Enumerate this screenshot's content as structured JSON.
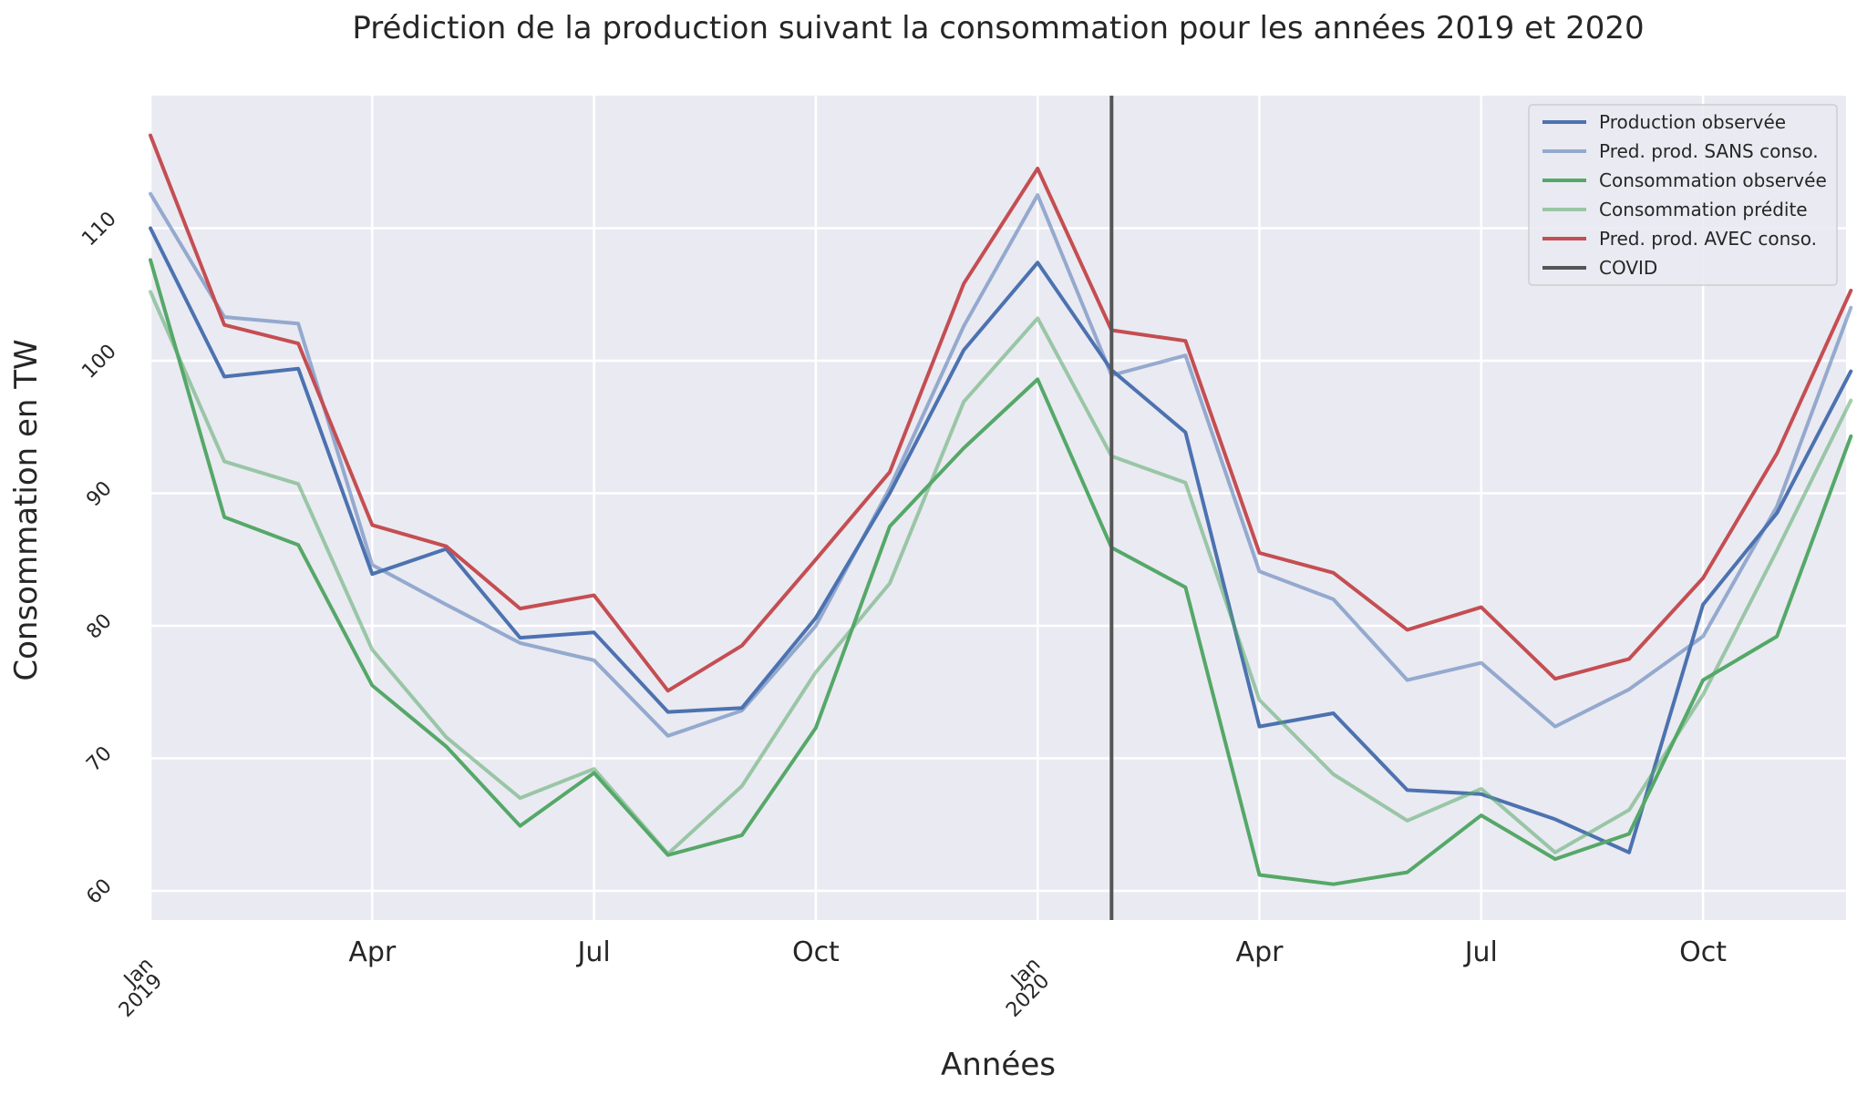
{
  "chart_data": {
    "type": "line",
    "title": "Prédiction de la production suivant la consommation pour les années 2019 et 2020",
    "xlabel": "Années",
    "ylabel": "Consommation en TW",
    "ylim": [
      57.8,
      120.0
    ],
    "yticks": [
      60,
      70,
      80,
      90,
      100,
      110
    ],
    "x": [
      "2019-01",
      "2019-02",
      "2019-03",
      "2019-04",
      "2019-05",
      "2019-06",
      "2019-07",
      "2019-08",
      "2019-09",
      "2019-10",
      "2019-11",
      "2019-12",
      "2020-01",
      "2020-02",
      "2020-03",
      "2020-04",
      "2020-05",
      "2020-06",
      "2020-07",
      "2020-08",
      "2020-09",
      "2020-10",
      "2020-11",
      "2020-12"
    ],
    "xticks": [
      {
        "date": "2019-01",
        "label": "Jan",
        "sublabel": "2019",
        "style": "small"
      },
      {
        "date": "2019-04",
        "label": "Apr",
        "style": "major"
      },
      {
        "date": "2019-07",
        "label": "Jul",
        "style": "major"
      },
      {
        "date": "2019-10",
        "label": "Oct",
        "style": "major"
      },
      {
        "date": "2020-01",
        "label": "Jan",
        "sublabel": "2020",
        "style": "small"
      },
      {
        "date": "2020-04",
        "label": "Apr",
        "style": "major"
      },
      {
        "date": "2020-07",
        "label": "Jul",
        "style": "major"
      },
      {
        "date": "2020-10",
        "label": "Oct",
        "style": "major"
      }
    ],
    "grid": true,
    "legend_position": "top-right",
    "series": [
      {
        "name": "Production observée",
        "color": "#4c72b0",
        "opacity": 1.0,
        "values": [
          110.0,
          98.8,
          99.4,
          83.9,
          85.8,
          79.1,
          79.5,
          73.5,
          73.8,
          80.6,
          90.0,
          100.8,
          107.4,
          99.3,
          94.6,
          72.4,
          73.4,
          67.6,
          67.3,
          65.4,
          62.9,
          81.6,
          88.5,
          99.2
        ]
      },
      {
        "name": "Pred. prod. SANS conso.",
        "color": "#4c72b0",
        "opacity": 0.55,
        "values": [
          112.6,
          103.3,
          102.8,
          84.6,
          81.6,
          78.7,
          77.4,
          71.7,
          73.6,
          80.0,
          90.4,
          102.6,
          112.5,
          98.9,
          100.4,
          84.1,
          82.0,
          75.9,
          77.2,
          72.4,
          75.2,
          79.2,
          89.0,
          104.0
        ]
      },
      {
        "name": "Consommation observée",
        "color": "#55a868",
        "opacity": 1.0,
        "values": [
          107.6,
          88.2,
          86.1,
          75.5,
          70.9,
          64.9,
          68.9,
          62.7,
          64.2,
          72.3,
          87.5,
          93.4,
          98.6,
          85.9,
          82.9,
          61.2,
          60.5,
          61.4,
          65.7,
          62.4,
          64.3,
          75.9,
          79.2,
          94.3
        ]
      },
      {
        "name": "Consommation prédite",
        "color": "#55a868",
        "opacity": 0.55,
        "values": [
          105.2,
          92.4,
          90.7,
          78.2,
          71.6,
          67.0,
          69.2,
          62.8,
          67.9,
          76.5,
          83.2,
          96.9,
          103.2,
          92.8,
          90.8,
          74.4,
          68.8,
          65.3,
          67.7,
          62.9,
          66.1,
          74.8,
          85.7,
          97.0
        ]
      },
      {
        "name": "Pred. prod. AVEC conso.",
        "color": "#c44e52",
        "opacity": 1.0,
        "values": [
          117.0,
          102.7,
          101.3,
          87.6,
          86.0,
          81.3,
          82.3,
          75.1,
          78.5,
          85.0,
          91.6,
          105.8,
          114.5,
          102.3,
          101.5,
          85.5,
          84.0,
          79.7,
          81.4,
          76.0,
          77.5,
          83.6,
          93.0,
          105.3
        ]
      }
    ],
    "annotations": [
      {
        "name": "COVID",
        "type": "vline",
        "date": "2020-02",
        "color": "#555555"
      }
    ]
  }
}
